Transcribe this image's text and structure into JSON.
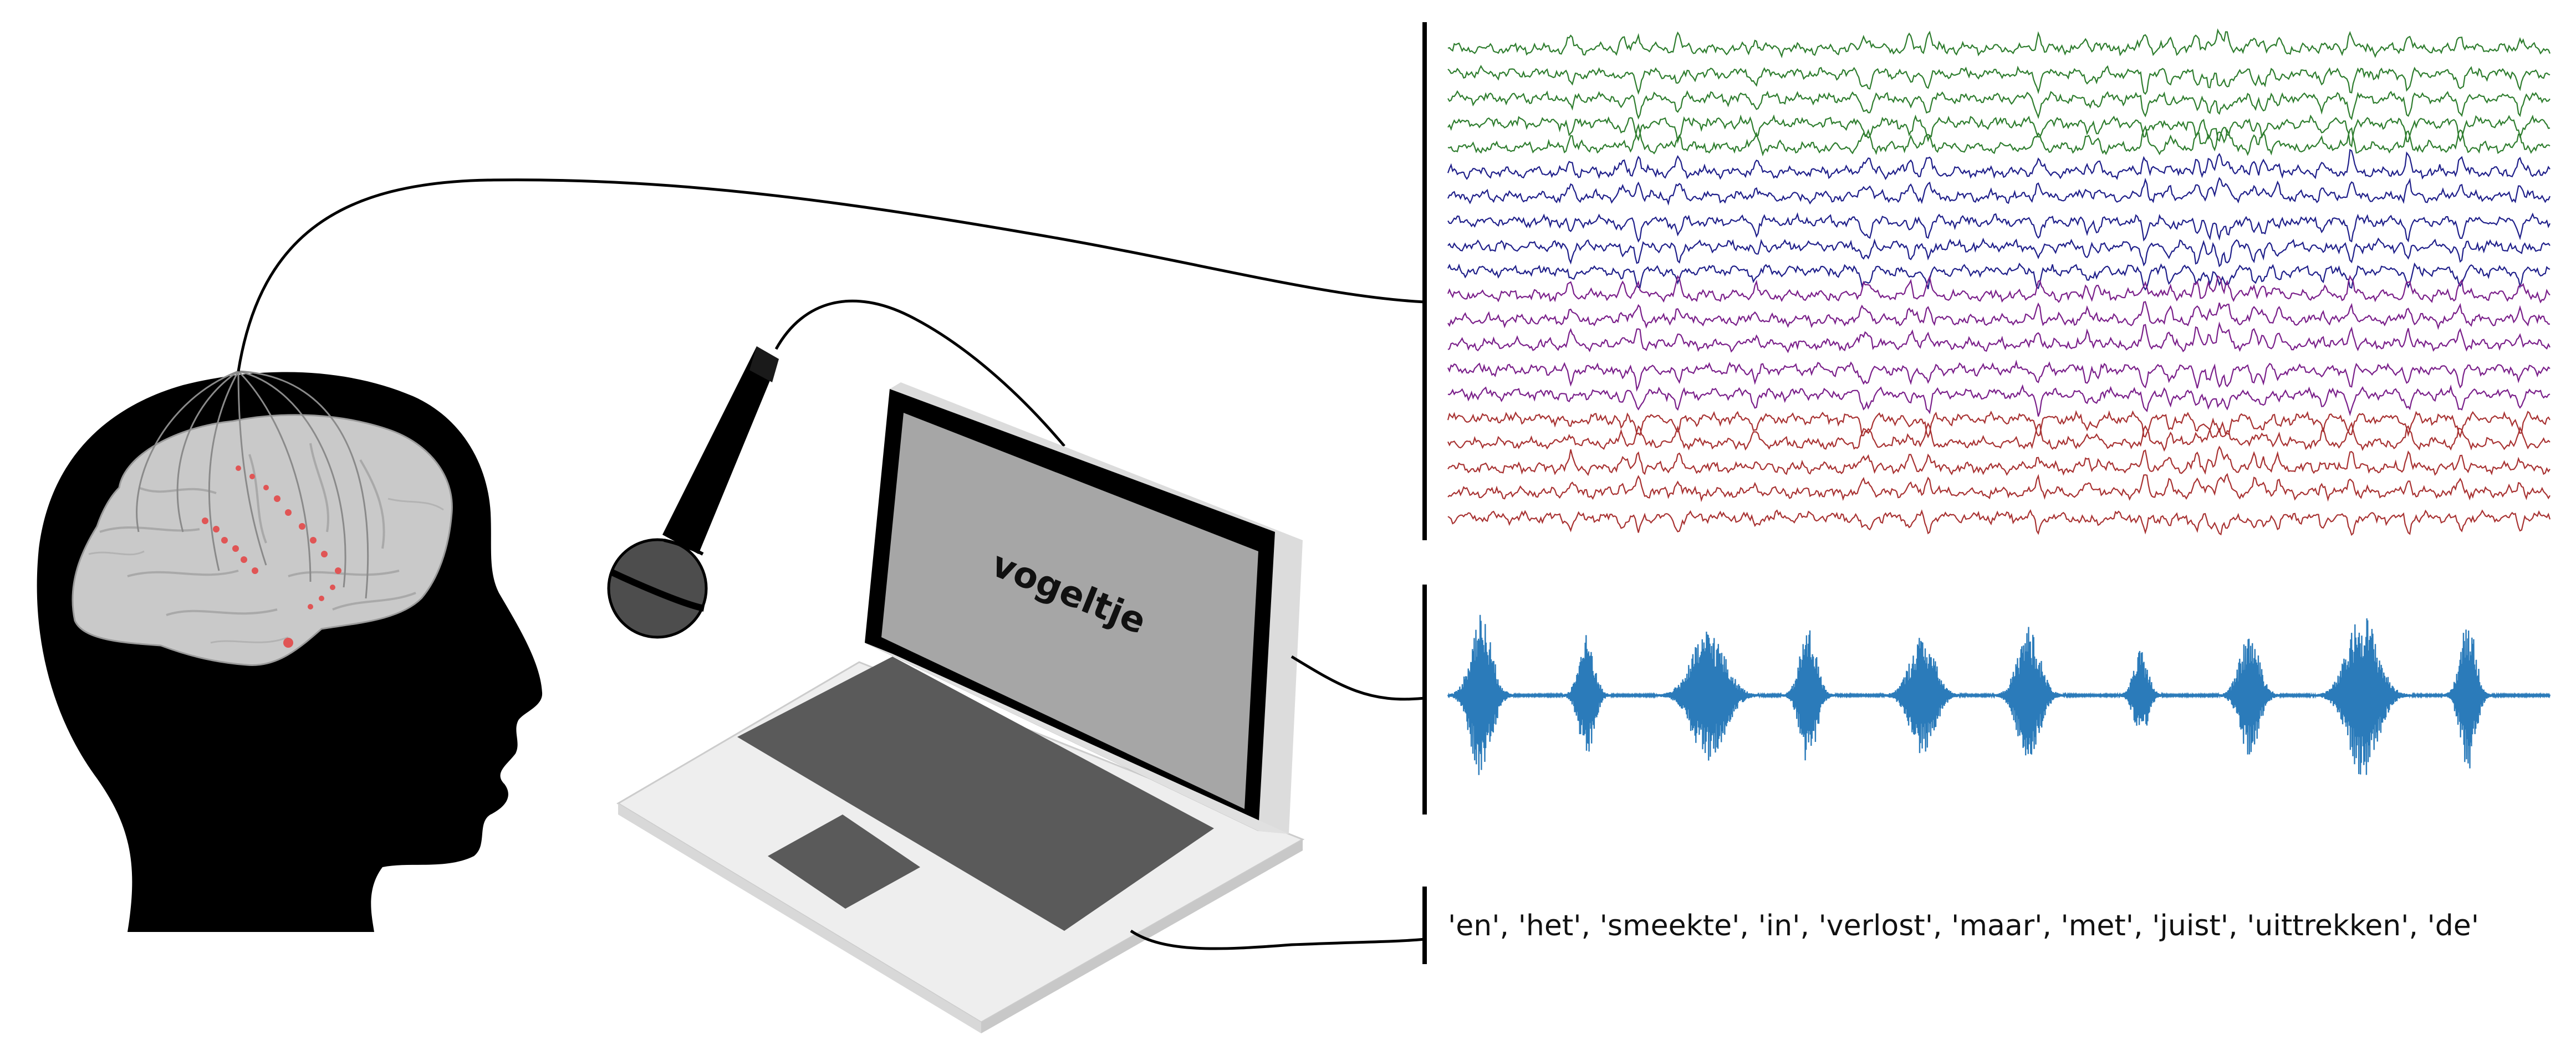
{
  "screen_word": "vogeltje",
  "word_sequence": "'en', 'het', 'smeekte', 'in', 'verlost', 'maar', 'met', 'juist', 'uittrekken', 'de'",
  "colors": {
    "head": "#000000",
    "brain": "#c9c9c9",
    "electrode": "#e05555",
    "eeg_groups": [
      "#2e7d2e",
      "#1f1f8a",
      "#7a1f8a",
      "#a83232"
    ],
    "audio": "#2b7bba",
    "laptop_body": "#ededed",
    "laptop_screen": "#a6a6a6",
    "keyboard": "#5a5a5a"
  },
  "icons": [
    "head-silhouette-icon",
    "brain-icon",
    "microphone-icon",
    "laptop-icon"
  ]
}
